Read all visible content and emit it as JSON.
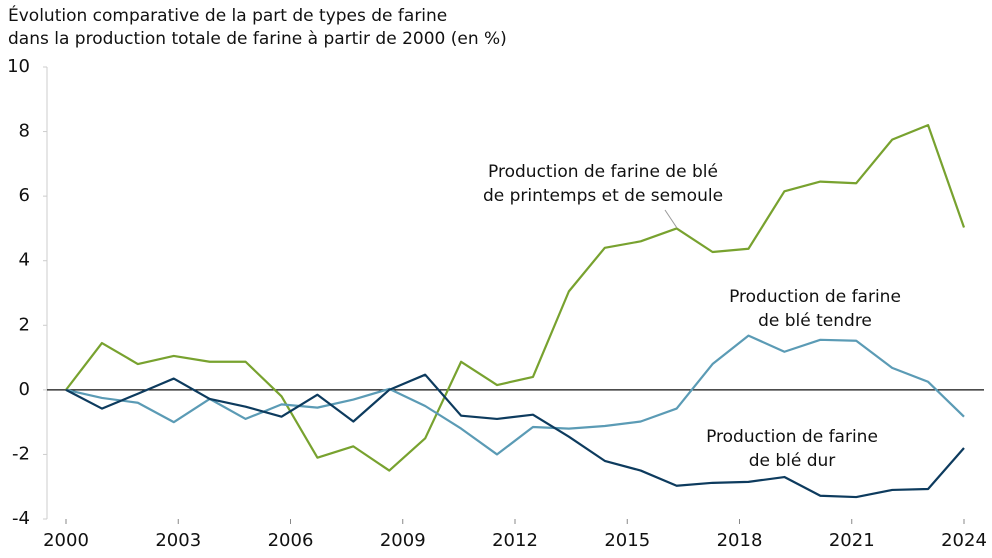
{
  "chart_data": {
    "type": "line",
    "title_lines": [
      "Évolution comparative de la part de types de farine",
      "dans la production totale de farine à partir de 2000 (en %)"
    ],
    "x": [
      2000,
      2000.96,
      2001.92,
      2002.88,
      2003.84,
      2004.8,
      2005.76,
      2006.72,
      2007.68,
      2008.64,
      2009.6,
      2010.56,
      2011.52,
      2012.48,
      2013.44,
      2014.4,
      2015.36,
      2016.32,
      2017.28,
      2018.24,
      2019.2,
      2020.16,
      2021.12,
      2022.08,
      2023.04,
      2024
    ],
    "series": [
      {
        "name_lines": [
          "Production de farine de blé",
          "de printemps et de semoule"
        ],
        "color": "#78a22f",
        "values": [
          0,
          1.45,
          0.8,
          1.05,
          0.87,
          0.87,
          -0.2,
          -2.1,
          -1.75,
          -2.5,
          -1.5,
          0.87,
          0.15,
          0.4,
          3.05,
          4.4,
          4.6,
          5.0,
          4.27,
          4.37,
          6.15,
          6.45,
          6.4,
          7.75,
          8.2,
          5.03
        ]
      },
      {
        "name_lines": [
          "Production de farine",
          "de blé tendre"
        ],
        "color": "#5b9bb5",
        "values": [
          0,
          -0.25,
          -0.4,
          -1.0,
          -0.28,
          -0.9,
          -0.45,
          -0.55,
          -0.3,
          0.03,
          -0.5,
          -1.2,
          -2.0,
          -1.15,
          -1.2,
          -1.12,
          -0.98,
          -0.58,
          0.8,
          1.68,
          1.18,
          1.55,
          1.52,
          0.68,
          0.25,
          -0.83
        ]
      },
      {
        "name_lines": [
          "Production de farine",
          "de blé dur"
        ],
        "color": "#0d3b5e",
        "values": [
          0,
          -0.58,
          -0.12,
          0.35,
          -0.28,
          -0.52,
          -0.83,
          -0.15,
          -0.98,
          0.0,
          0.47,
          -0.8,
          -0.9,
          -0.77,
          -1.45,
          -2.2,
          -2.5,
          -2.97,
          -2.88,
          -2.85,
          -2.7,
          -3.28,
          -3.32,
          -3.1,
          -3.07,
          -1.8
        ]
      }
    ],
    "xlim": [
      2000,
      2024
    ],
    "xticks": [
      2000,
      2003,
      2006,
      2009,
      2012,
      2015,
      2018,
      2021,
      2024
    ],
    "ylim": [
      -4,
      10
    ],
    "yticks": [
      -4,
      -2,
      0,
      2,
      4,
      6,
      8,
      10
    ],
    "grid": false
  }
}
